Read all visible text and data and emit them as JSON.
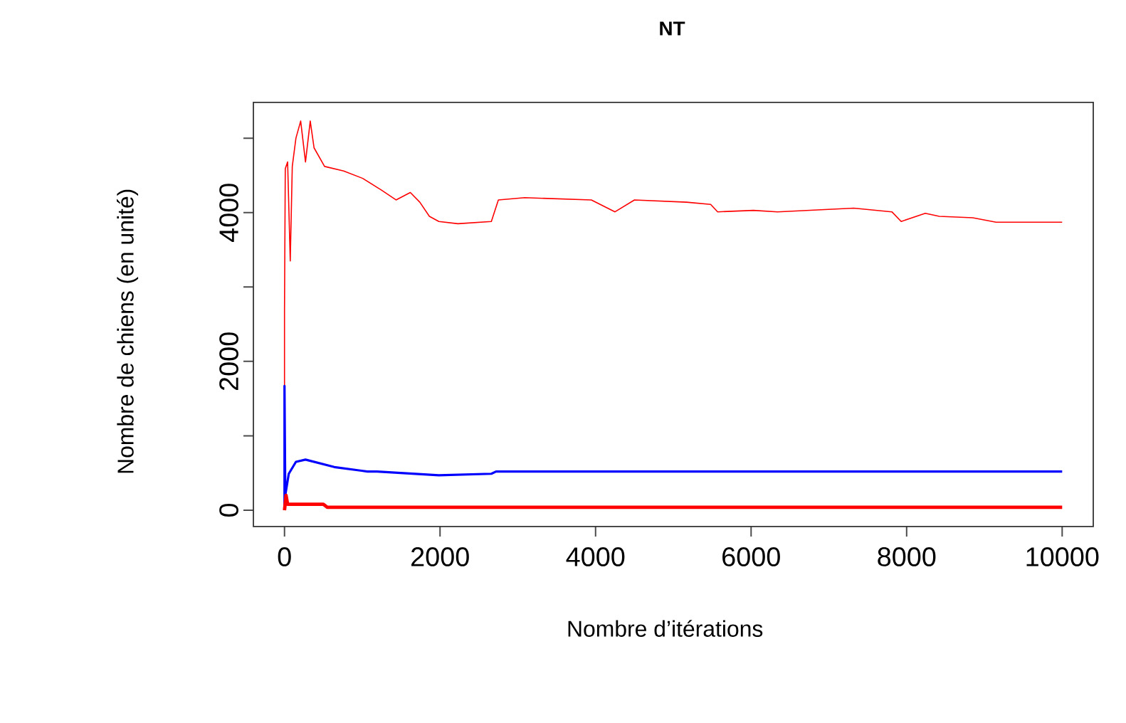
{
  "chart_data": {
    "type": "line",
    "title": "NT",
    "xlabel": "Nombre d’itérations",
    "ylabel": "Nombre de chiens (en unité)",
    "xlim": [
      -400,
      10400
    ],
    "ylim": [
      -220,
      5480
    ],
    "xticks": [
      0,
      2000,
      4000,
      6000,
      8000,
      10000
    ],
    "yticks": [
      0,
      {
        "value": 1000,
        "label": null
      },
      2000,
      {
        "value": 3000,
        "label": null
      },
      4000,
      {
        "value": 5000,
        "label": null
      }
    ],
    "grid": false,
    "legend": false,
    "marker": "none",
    "line_style": "solid",
    "series": [
      {
        "color": "#ff0000",
        "x": [
          0,
          0,
          10,
          40,
          74,
          100,
          147,
          208,
          270,
          331,
          380,
          515,
          760,
          1005,
          1250,
          1434,
          1618,
          1740,
          1863,
          1985,
          2230,
          2660,
          2750,
          3090,
          3946,
          4250,
          4500,
          5170,
          5480,
          5570,
          6030,
          6340,
          7320,
          7810,
          7930,
          8240,
          8420,
          8850,
          9150,
          10000
        ],
        "values": [
          0,
          2700,
          4590,
          4680,
          3350,
          4620,
          5000,
          5230,
          4680,
          5230,
          4870,
          4620,
          4560,
          4460,
          4300,
          4170,
          4270,
          4140,
          3950,
          3880,
          3850,
          3880,
          4170,
          4200,
          4170,
          4010,
          4170,
          4140,
          4110,
          4010,
          4030,
          4010,
          4060,
          4010,
          3880,
          3990,
          3950,
          3930,
          3870,
          3870
        ]
      },
      {
        "color": "#0000ff",
        "x": [
          0,
          0,
          10,
          55,
          147,
          270,
          640,
          1066,
          1190,
          1985,
          2660,
          2720,
          10000
        ],
        "values": [
          0,
          1670,
          200,
          490,
          650,
          680,
          580,
          520,
          520,
          470,
          490,
          520,
          520
        ]
      },
      {
        "color": "#ff0000",
        "x": [
          0,
          20,
          40,
          500,
          550,
          10000
        ],
        "values": [
          0,
          200,
          80,
          80,
          40,
          40
        ]
      }
    ]
  }
}
